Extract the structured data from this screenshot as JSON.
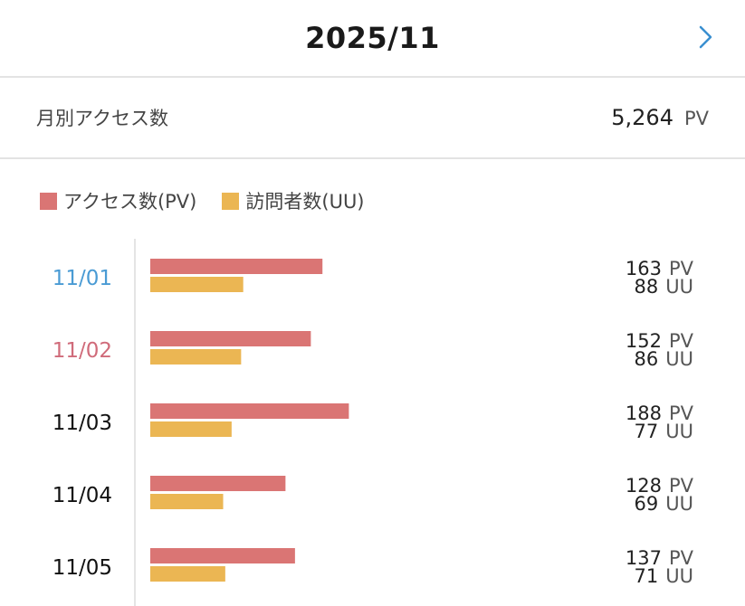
{
  "header": {
    "title": "2025/11",
    "next_icon": "chevron-right-icon"
  },
  "summary": {
    "label": "月別アクセス数",
    "value": "5,264",
    "unit": "PV"
  },
  "colors": {
    "pv": "#da7574",
    "uu": "#ebb653",
    "sunday": "#d06b7a",
    "saturday": "#4a9bd4",
    "weekday": "#111111"
  },
  "chart_data": {
    "type": "bar",
    "orientation": "horizontal",
    "legend": [
      {
        "key": "pv",
        "label": "アクセス数(PV)"
      },
      {
        "key": "uu",
        "label": "訪問者数(UU)"
      }
    ],
    "legend_position": "top-left",
    "categories": [
      "11/01",
      "11/02",
      "11/03",
      "11/04",
      "11/05"
    ],
    "category_styles": [
      "saturday",
      "sunday",
      "weekday",
      "weekday",
      "weekday"
    ],
    "series": [
      {
        "name": "アクセス数(PV)",
        "key": "pv",
        "unit": "PV",
        "values": [
          163,
          152,
          188,
          128,
          137
        ]
      },
      {
        "name": "訪問者数(UU)",
        "key": "uu",
        "unit": "UU",
        "values": [
          88,
          86,
          77,
          69,
          71
        ]
      }
    ],
    "grid": false
  }
}
